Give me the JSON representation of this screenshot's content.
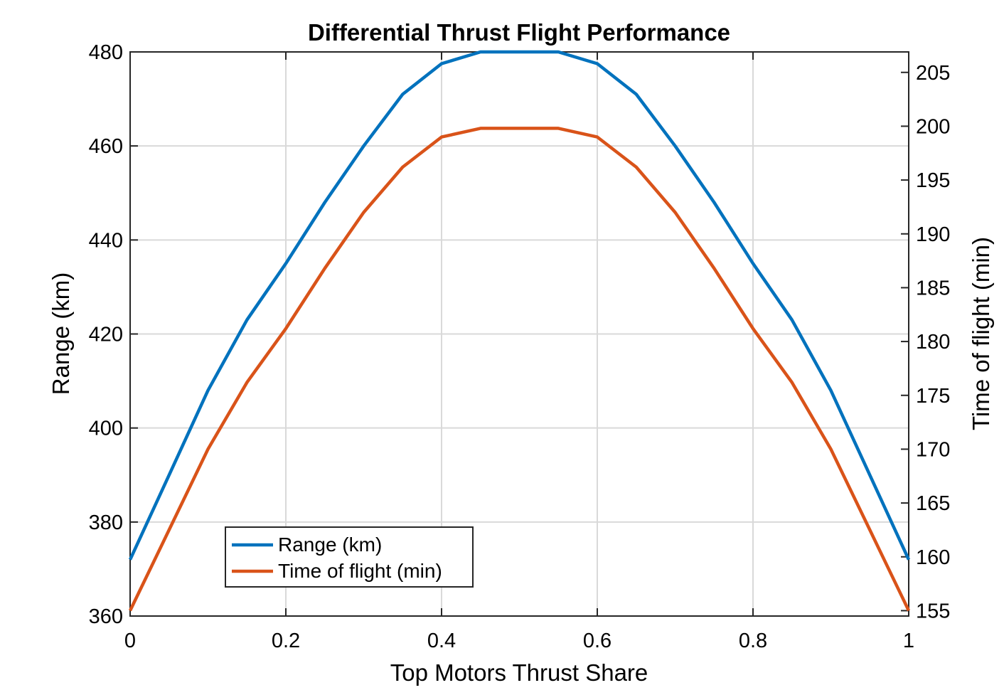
{
  "chart_data": {
    "type": "line",
    "title": "Differential Thrust Flight Performance",
    "xlabel": "Top Motors Thrust Share",
    "ylabel_left": "Range (km)",
    "ylabel_right": "Time of flight (min)",
    "xlim": [
      0,
      1
    ],
    "ylim_left": [
      360,
      480
    ],
    "ylim_right": [
      154.5,
      206.9
    ],
    "x_ticks": [
      "0",
      "0.2",
      "0.4",
      "0.6",
      "0.8",
      "1"
    ],
    "y_left_ticks": [
      "360",
      "380",
      "400",
      "420",
      "440",
      "460",
      "480"
    ],
    "y_right_ticks": [
      "155",
      "160",
      "165",
      "170",
      "175",
      "180",
      "185",
      "190",
      "195",
      "200",
      "205"
    ],
    "grid": true,
    "legend_position": "bottom-left",
    "x": [
      0,
      0.05,
      0.1,
      0.15,
      0.2,
      0.25,
      0.3,
      0.35,
      0.4,
      0.45,
      0.5,
      0.55,
      0.6,
      0.65,
      0.7,
      0.75,
      0.8,
      0.85,
      0.9,
      0.95,
      1
    ],
    "series": [
      {
        "name": "Range (km)",
        "axis": "left",
        "color": "#0072BD",
        "values": [
          372,
          390,
          408,
          423,
          435,
          448,
          460,
          471,
          477.5,
          480,
          480,
          480,
          477.5,
          471,
          460,
          448,
          435,
          423,
          408,
          390,
          372
        ]
      },
      {
        "name": "Time of flight (min)",
        "axis": "right",
        "color": "#D95319",
        "values": [
          155,
          162.5,
          170,
          176.2,
          181.2,
          186.8,
          192,
          196.2,
          199,
          199.8,
          199.8,
          199.8,
          199,
          196.2,
          192,
          186.8,
          181.2,
          176.2,
          170,
          162.5,
          155
        ]
      }
    ]
  }
}
